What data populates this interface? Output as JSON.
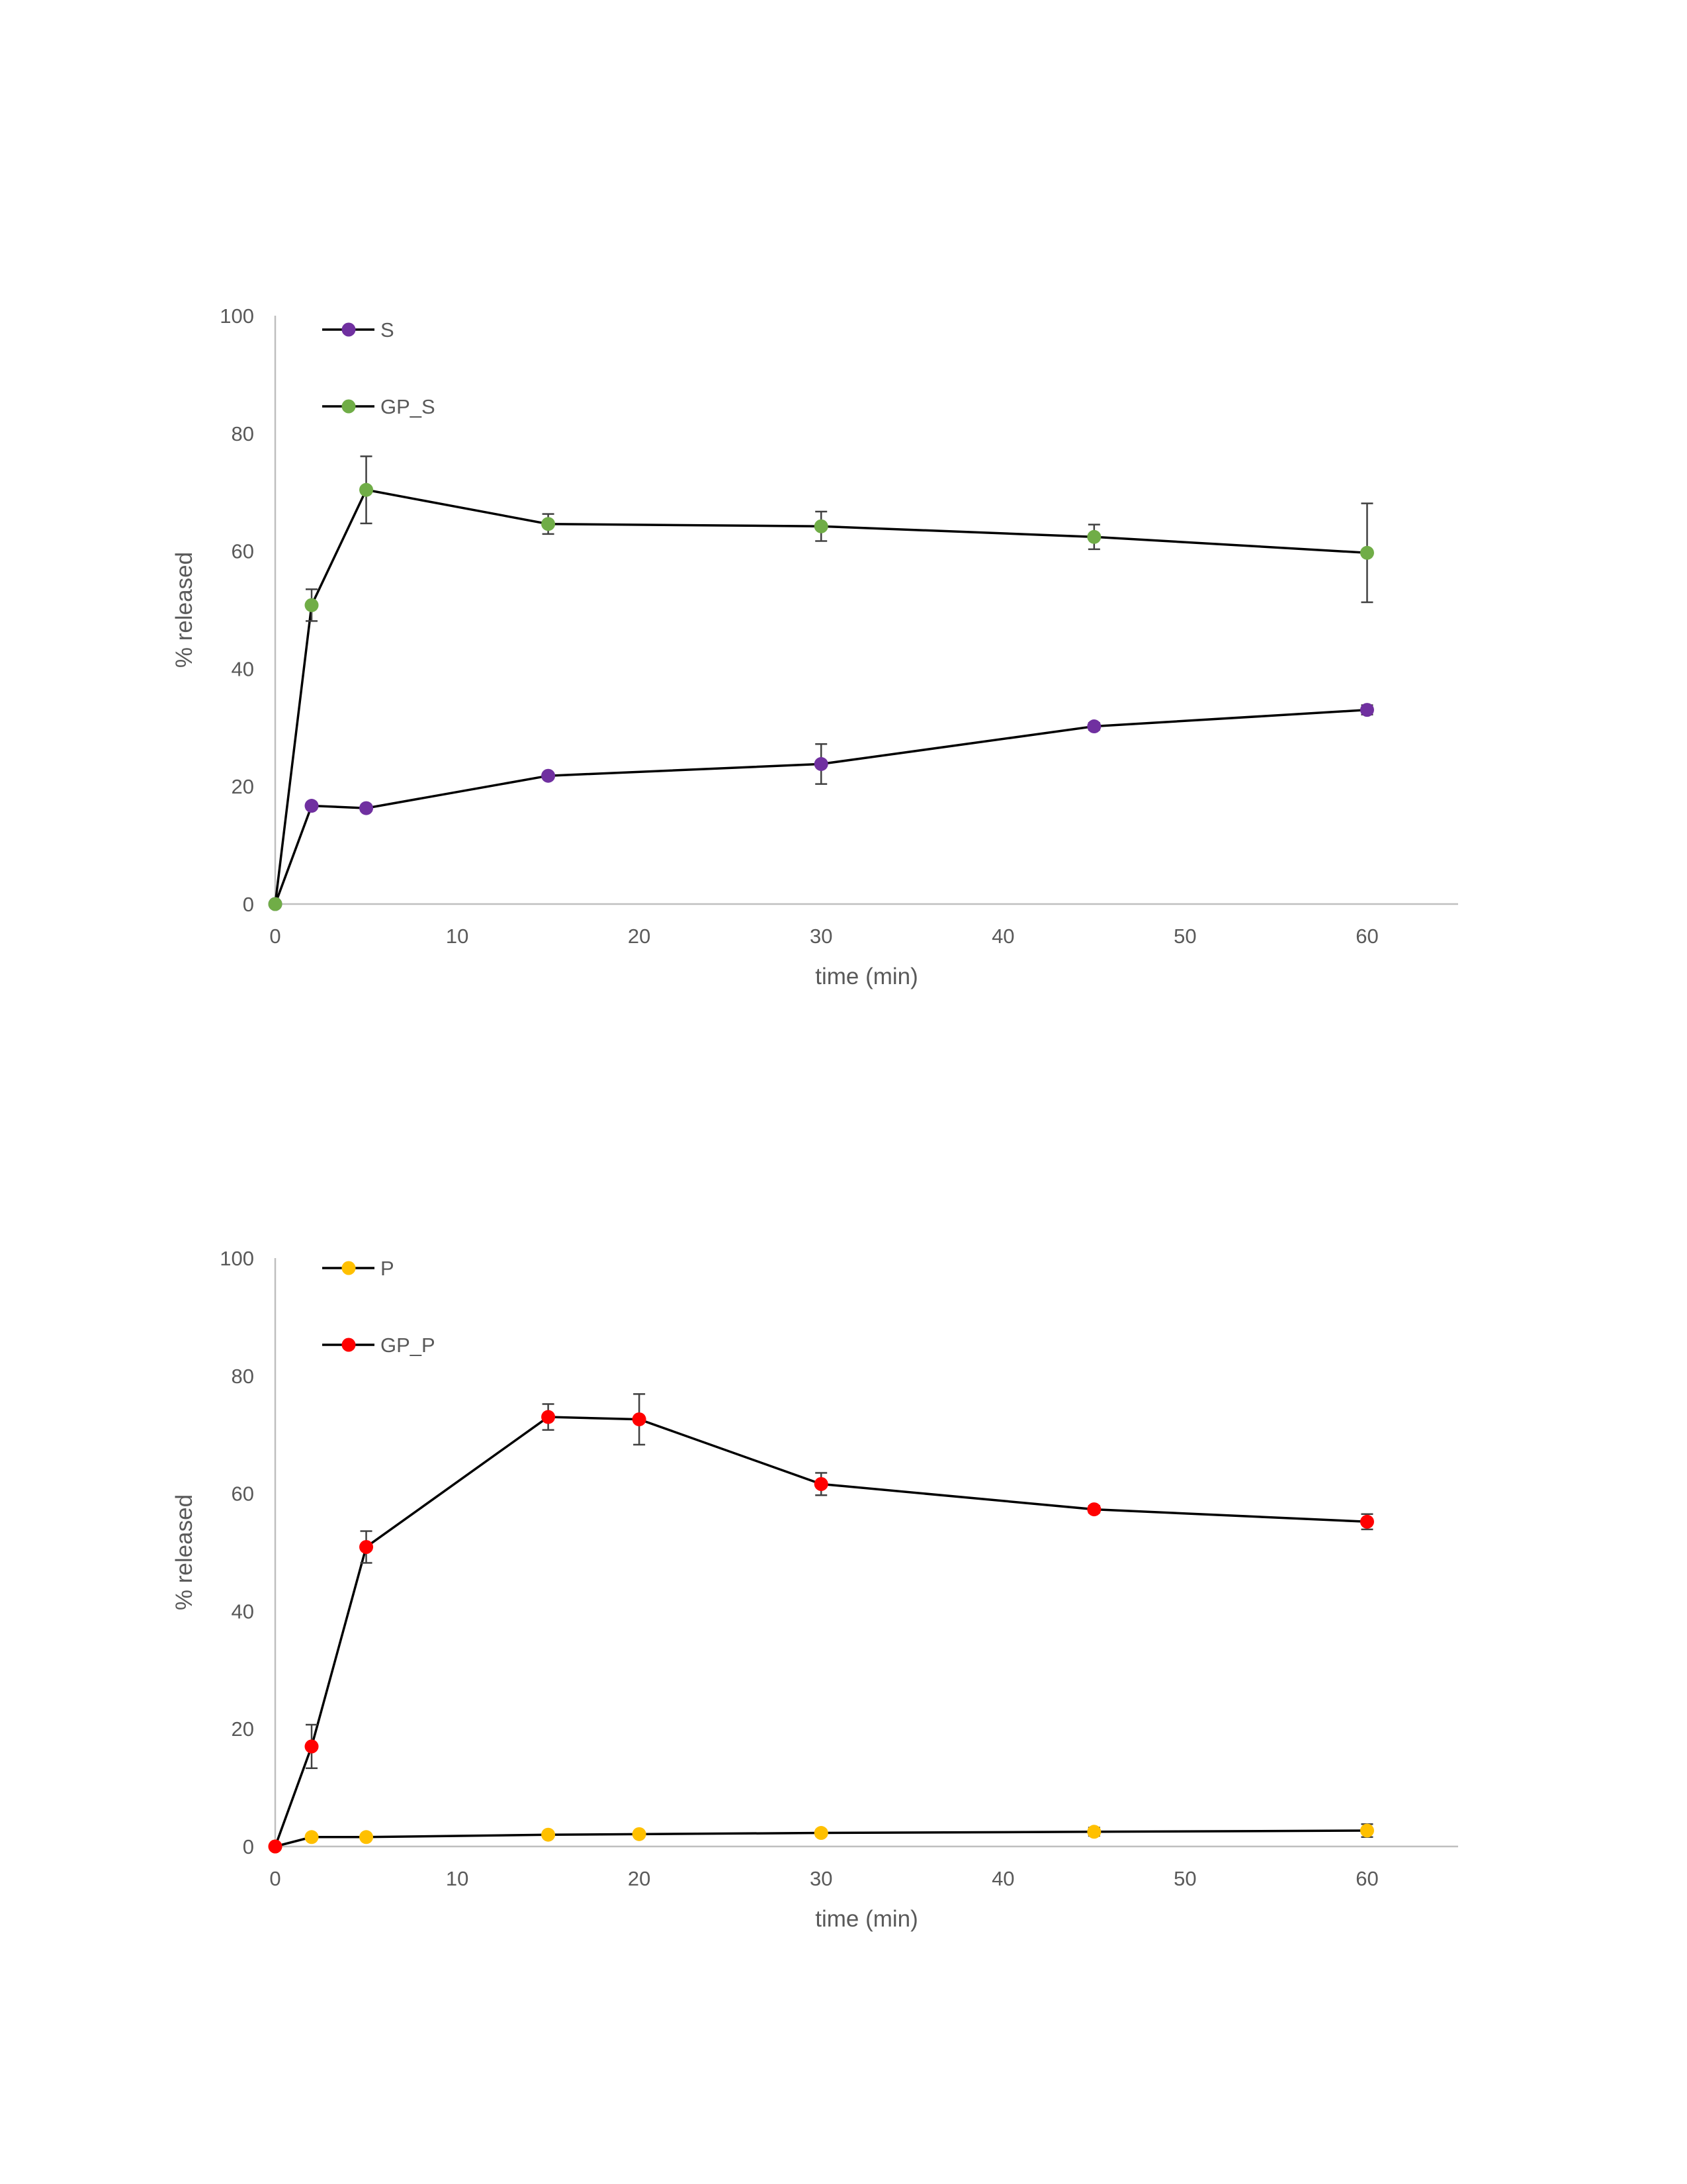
{
  "chart_data": [
    {
      "type": "line",
      "xlabel": "time (min)",
      "ylabel": "% released",
      "xlim": [
        0,
        65
      ],
      "ylim": [
        0,
        100
      ],
      "xticks": [
        0,
        10,
        20,
        30,
        40,
        50,
        60
      ],
      "yticks": [
        0,
        20,
        40,
        60,
        80,
        100
      ],
      "x_tick_labels": [
        "0",
        "10",
        "20",
        "30",
        "40",
        "50",
        "60"
      ],
      "y_tick_labels": [
        "0",
        "20",
        "40",
        "60",
        "80",
        "100"
      ],
      "grid": false,
      "legend_position": "top-left",
      "series": [
        {
          "name": "S",
          "color": "#7030a0",
          "points": [
            {
              "x": 0,
              "y": 0,
              "err": 0
            },
            {
              "x": 2,
              "y": 16.7,
              "err": 0.5
            },
            {
              "x": 5,
              "y": 16.3,
              "err": 0.5
            },
            {
              "x": 15,
              "y": 21.8,
              "err": 0.5
            },
            {
              "x": 30,
              "y": 23.8,
              "err": 3.4
            },
            {
              "x": 45,
              "y": 30.2,
              "err": 0.6
            },
            {
              "x": 60,
              "y": 33.0,
              "err": 0.8
            }
          ]
        },
        {
          "name": "GP_S",
          "color": "#70ad47",
          "points": [
            {
              "x": 0,
              "y": 0,
              "err": 0
            },
            {
              "x": 2,
              "y": 50.8,
              "err": 2.7
            },
            {
              "x": 5,
              "y": 70.4,
              "err": 5.7
            },
            {
              "x": 15,
              "y": 64.6,
              "err": 1.7
            },
            {
              "x": 30,
              "y": 64.2,
              "err": 2.5
            },
            {
              "x": 45,
              "y": 62.4,
              "err": 2.1
            },
            {
              "x": 60,
              "y": 59.7,
              "err": 8.4
            }
          ]
        }
      ]
    },
    {
      "type": "line",
      "xlabel": "time (min)",
      "ylabel": "% released",
      "xlim": [
        0,
        65
      ],
      "ylim": [
        0,
        100
      ],
      "xticks": [
        0,
        10,
        20,
        30,
        40,
        50,
        60
      ],
      "yticks": [
        0,
        20,
        40,
        60,
        80,
        100
      ],
      "x_tick_labels": [
        "0",
        "10",
        "20",
        "30",
        "40",
        "50",
        "60"
      ],
      "y_tick_labels": [
        "0",
        "20",
        "40",
        "60",
        "80",
        "100"
      ],
      "grid": false,
      "legend_position": "top-left",
      "series": [
        {
          "name": "P",
          "color": "#ffc000",
          "points": [
            {
              "x": 0,
              "y": 0,
              "err": 0
            },
            {
              "x": 2,
              "y": 1.6,
              "err": 0.3
            },
            {
              "x": 5,
              "y": 1.6,
              "err": 0.3
            },
            {
              "x": 15,
              "y": 2.0,
              "err": 0.3
            },
            {
              "x": 20,
              "y": 2.1,
              "err": 0.4
            },
            {
              "x": 30,
              "y": 2.3,
              "err": 0.5
            },
            {
              "x": 45,
              "y": 2.5,
              "err": 0.7
            },
            {
              "x": 60,
              "y": 2.7,
              "err": 1.1
            }
          ]
        },
        {
          "name": "GP_P",
          "color": "#ff0000",
          "points": [
            {
              "x": 0,
              "y": 0,
              "err": 0
            },
            {
              "x": 2,
              "y": 17.0,
              "err": 3.7
            },
            {
              "x": 5,
              "y": 50.9,
              "err": 2.7
            },
            {
              "x": 15,
              "y": 73.0,
              "err": 2.2
            },
            {
              "x": 20,
              "y": 72.6,
              "err": 4.3
            },
            {
              "x": 30,
              "y": 61.6,
              "err": 1.9
            },
            {
              "x": 45,
              "y": 57.3,
              "err": 0.6
            },
            {
              "x": 60,
              "y": 55.2,
              "err": 1.3
            }
          ]
        }
      ]
    }
  ]
}
